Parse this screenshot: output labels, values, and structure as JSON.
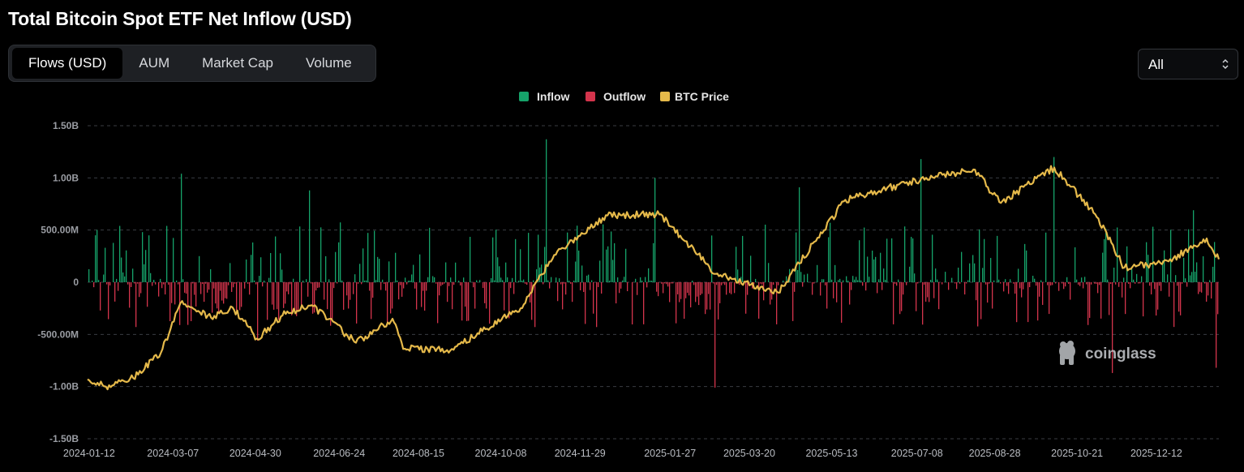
{
  "header": {
    "title": "Total Bitcoin Spot ETF Net Inflow (USD)"
  },
  "tabs": [
    {
      "label": "Flows (USD)",
      "active": true
    },
    {
      "label": "AUM",
      "active": false
    },
    {
      "label": "Market Cap",
      "active": false
    },
    {
      "label": "Volume",
      "active": false
    }
  ],
  "range_select": {
    "value": "All",
    "icon": "chevron-updown-icon"
  },
  "watermark": {
    "text": "coinglass",
    "icon": "coinglass-logo-icon"
  },
  "colors": {
    "inflow": "#16a36a",
    "outflow": "#d4344c",
    "price": "#e5b94a",
    "grid": "#3a3d42"
  },
  "chart_data": {
    "type": "bar",
    "title": "Total Bitcoin Spot ETF Net Inflow (USD)",
    "legend": [
      "Inflow",
      "Outflow",
      "BTC Price"
    ],
    "legend_position": "top-center",
    "grid": true,
    "y_ticks": [
      "1.50B",
      "1.00B",
      "500.00M",
      "0",
      "-500.00M",
      "-1.00B",
      "-1.50B"
    ],
    "ylim": [
      -1500000000,
      1500000000
    ],
    "x_ticks": [
      "2024-01-12",
      "2024-03-07",
      "2024-04-30",
      "2024-06-24",
      "2024-08-15",
      "2024-10-08",
      "2024-11-29",
      "2025-01-27",
      "2025-03-20",
      "2025-05-13",
      "2025-07-08",
      "2025-08-28",
      "2025-10-21",
      "2025-12-12"
    ],
    "x_range": [
      "2024-01-11",
      "2026-01-22"
    ],
    "flow_spikes": [
      {
        "date": "2024-01-16",
        "value": 450000000
      },
      {
        "date": "2024-03-12",
        "value": 1040000000
      },
      {
        "date": "2024-05-01",
        "value": -560000000
      },
      {
        "date": "2024-06-05",
        "value": 880000000
      },
      {
        "date": "2024-11-07",
        "value": 1370000000
      },
      {
        "date": "2025-01-17",
        "value": 1000000000
      },
      {
        "date": "2025-02-25",
        "value": -1010000000
      },
      {
        "date": "2025-04-22",
        "value": 910000000
      },
      {
        "date": "2025-07-10",
        "value": 1180000000
      },
      {
        "date": "2025-10-06",
        "value": 1200000000
      },
      {
        "date": "2025-11-13",
        "value": -870000000
      },
      {
        "date": "2026-01-05",
        "value": 690000000
      },
      {
        "date": "2026-01-20",
        "value": -820000000
      }
    ],
    "btc_price_path_on_flow_axis": [
      {
        "date": "2024-01-11",
        "value": -930000000
      },
      {
        "date": "2024-01-23",
        "value": -1000000000
      },
      {
        "date": "2024-02-10",
        "value": -920000000
      },
      {
        "date": "2024-02-28",
        "value": -680000000
      },
      {
        "date": "2024-03-13",
        "value": -180000000
      },
      {
        "date": "2024-04-01",
        "value": -340000000
      },
      {
        "date": "2024-04-15",
        "value": -240000000
      },
      {
        "date": "2024-05-01",
        "value": -540000000
      },
      {
        "date": "2024-05-21",
        "value": -280000000
      },
      {
        "date": "2024-06-07",
        "value": -230000000
      },
      {
        "date": "2024-07-05",
        "value": -580000000
      },
      {
        "date": "2024-07-29",
        "value": -350000000
      },
      {
        "date": "2024-08-05",
        "value": -640000000
      },
      {
        "date": "2024-09-06",
        "value": -640000000
      },
      {
        "date": "2024-09-28",
        "value": -450000000
      },
      {
        "date": "2024-10-21",
        "value": -250000000
      },
      {
        "date": "2024-11-12",
        "value": 260000000
      },
      {
        "date": "2024-12-17",
        "value": 640000000
      },
      {
        "date": "2025-01-20",
        "value": 650000000
      },
      {
        "date": "2025-02-26",
        "value": 80000000
      },
      {
        "date": "2025-04-08",
        "value": -100000000
      },
      {
        "date": "2025-05-22",
        "value": 790000000
      },
      {
        "date": "2025-07-14",
        "value": 1000000000
      },
      {
        "date": "2025-08-14",
        "value": 1080000000
      },
      {
        "date": "2025-09-01",
        "value": 760000000
      },
      {
        "date": "2025-10-06",
        "value": 1100000000
      },
      {
        "date": "2025-11-04",
        "value": 610000000
      },
      {
        "date": "2025-11-21",
        "value": 140000000
      },
      {
        "date": "2025-12-20",
        "value": 200000000
      },
      {
        "date": "2026-01-14",
        "value": 420000000
      },
      {
        "date": "2026-01-22",
        "value": 220000000
      }
    ]
  }
}
